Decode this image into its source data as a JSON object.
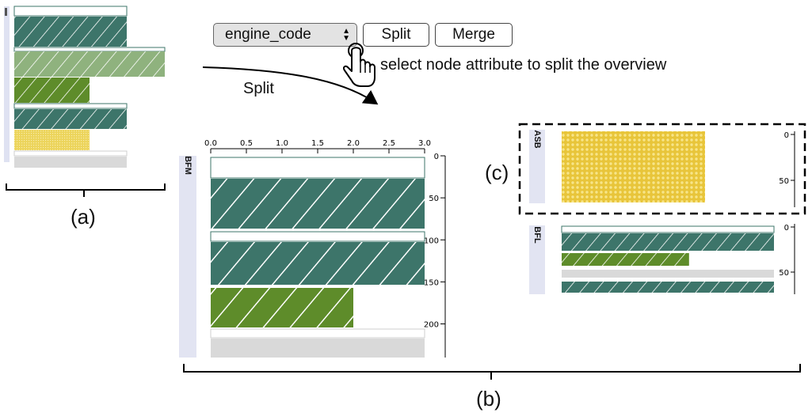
{
  "toolbar": {
    "select_value": "engine_code",
    "split_label": "Split",
    "merge_label": "Merge",
    "hint": "select node attribute to split the overview"
  },
  "arrow_label": "Split",
  "panel_labels": {
    "a": "(a)",
    "b": "(b)",
    "c": "(c)"
  },
  "colors": {
    "teal": "#3d756a",
    "light_green": "#8fb27e",
    "olive": "#5e8c2a",
    "yellow": "#e8c53a",
    "gray": "#d9d9d9",
    "sidebar": "#e2e4f2",
    "frame": "#3d756a"
  },
  "chart_data": [
    {
      "type": "bar",
      "group": "BFM",
      "x_ticks": [
        "0.0",
        "0.5",
        "1.0",
        "1.5",
        "2.0",
        "2.5",
        "3.0"
      ],
      "xlim": [
        0,
        3
      ],
      "y_ticks": [
        "0",
        "50",
        "100",
        "150",
        "200"
      ],
      "ylim": [
        0,
        240
      ],
      "bars": [
        {
          "kind": "outline",
          "value": 3.0,
          "pattern": "none"
        },
        {
          "kind": "teal",
          "value": 3.0,
          "pattern": "hatch"
        },
        {
          "kind": "outline",
          "value": 3.0,
          "pattern": "none"
        },
        {
          "kind": "teal",
          "value": 3.0,
          "pattern": "hatch"
        },
        {
          "kind": "olive",
          "value": 2.0,
          "pattern": "hatch"
        },
        {
          "kind": "outline-gray",
          "value": 3.0,
          "pattern": "none"
        },
        {
          "kind": "gray",
          "value": 3.0,
          "pattern": "none"
        }
      ]
    },
    {
      "type": "bar",
      "group": "ASB",
      "y_ticks": [
        "0",
        "50"
      ],
      "bars": [
        {
          "kind": "yellow",
          "value": 1.0,
          "pattern": "dots"
        }
      ]
    },
    {
      "type": "bar",
      "group": "BFL",
      "y_ticks": [
        "0",
        "50"
      ],
      "bars": [
        {
          "kind": "outline",
          "value": 1.0,
          "pattern": "none"
        },
        {
          "kind": "teal",
          "value": 1.0,
          "pattern": "hatch"
        },
        {
          "kind": "olive",
          "value": 0.6,
          "pattern": "hatch"
        },
        {
          "kind": "gray",
          "value": 1.0,
          "pattern": "none"
        },
        {
          "kind": "teal",
          "value": 1.0,
          "pattern": "hatch"
        }
      ]
    }
  ]
}
